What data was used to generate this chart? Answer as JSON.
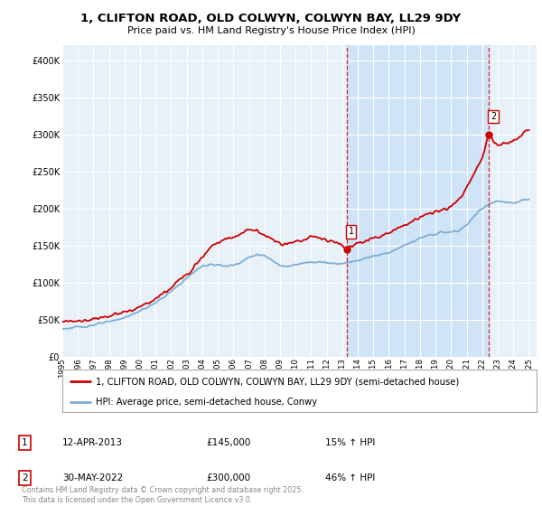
{
  "title_line1": "1, CLIFTON ROAD, OLD COLWYN, COLWYN BAY, LL29 9DY",
  "title_line2": "Price paid vs. HM Land Registry's House Price Index (HPI)",
  "legend_line1": "1, CLIFTON ROAD, OLD COLWYN, COLWYN BAY, LL29 9DY (semi-detached house)",
  "legend_line2": "HPI: Average price, semi-detached house, Conwy",
  "footnote": "Contains HM Land Registry data © Crown copyright and database right 2025.\nThis data is licensed under the Open Government Licence v3.0.",
  "annotation1_label": "1",
  "annotation1_date": "12-APR-2013",
  "annotation1_price": "£145,000",
  "annotation1_hpi": "15% ↑ HPI",
  "annotation2_label": "2",
  "annotation2_date": "30-MAY-2022",
  "annotation2_price": "£300,000",
  "annotation2_hpi": "46% ↑ HPI",
  "red_color": "#cc0000",
  "blue_color": "#7eadd4",
  "background_color": "#ffffff",
  "plot_bg_color": "#e8f0f8",
  "highlight_bg_color": "#d0e4f7",
  "grid_color": "#ffffff",
  "vline_color": "#cc0000",
  "ylim": [
    0,
    420000
  ],
  "yticks": [
    0,
    50000,
    100000,
    150000,
    200000,
    250000,
    300000,
    350000,
    400000
  ],
  "sale1_year": 2013.28,
  "sale1_price": 145000,
  "sale2_year": 2022.41,
  "sale2_price": 300000,
  "xmin": 1995,
  "xmax": 2025.5,
  "hpi_years": [
    1995.0,
    1995.5,
    1996.0,
    1996.5,
    1997.0,
    1997.5,
    1998.0,
    1998.5,
    1999.0,
    1999.5,
    2000.0,
    2000.5,
    2001.0,
    2001.5,
    2002.0,
    2002.5,
    2003.0,
    2003.5,
    2004.0,
    2004.5,
    2005.0,
    2005.5,
    2006.0,
    2006.5,
    2007.0,
    2007.5,
    2008.0,
    2008.5,
    2009.0,
    2009.5,
    2010.0,
    2010.5,
    2011.0,
    2011.5,
    2012.0,
    2012.5,
    2013.0,
    2013.5,
    2014.0,
    2014.5,
    2015.0,
    2015.5,
    2016.0,
    2016.5,
    2017.0,
    2017.5,
    2018.0,
    2018.5,
    2019.0,
    2019.5,
    2020.0,
    2020.5,
    2021.0,
    2021.5,
    2022.0,
    2022.5,
    2023.0,
    2023.5,
    2024.0,
    2024.5,
    2025.0
  ],
  "hpi_values": [
    38000,
    38500,
    40000,
    41000,
    43000,
    45000,
    47000,
    50000,
    53000,
    57000,
    62000,
    67000,
    73000,
    80000,
    88000,
    97000,
    106000,
    115000,
    122000,
    125000,
    124000,
    122000,
    124000,
    128000,
    134000,
    138000,
    136000,
    130000,
    124000,
    122000,
    124000,
    126000,
    128000,
    128000,
    127000,
    126000,
    126000,
    128000,
    130000,
    133000,
    136000,
    138000,
    141000,
    145000,
    150000,
    155000,
    160000,
    163000,
    166000,
    168000,
    168000,
    170000,
    178000,
    190000,
    200000,
    207000,
    210000,
    208000,
    207000,
    210000,
    213000
  ],
  "red_years": [
    1995.0,
    1995.5,
    1996.0,
    1996.5,
    1997.0,
    1997.5,
    1998.0,
    1998.5,
    1999.0,
    1999.5,
    2000.0,
    2000.5,
    2001.0,
    2001.5,
    2002.0,
    2002.5,
    2003.0,
    2003.5,
    2004.0,
    2004.5,
    2005.0,
    2005.5,
    2006.0,
    2006.5,
    2007.0,
    2007.5,
    2008.0,
    2008.5,
    2009.0,
    2009.5,
    2010.0,
    2010.5,
    2011.0,
    2011.5,
    2012.0,
    2012.5,
    2013.0,
    2013.28,
    2013.5,
    2014.0,
    2014.5,
    2015.0,
    2015.5,
    2016.0,
    2016.5,
    2017.0,
    2017.5,
    2018.0,
    2018.5,
    2019.0,
    2019.5,
    2020.0,
    2020.5,
    2021.0,
    2021.5,
    2022.0,
    2022.41,
    2022.5,
    2023.0,
    2023.5,
    2024.0,
    2024.5,
    2025.0
  ],
  "red_values": [
    47000,
    47500,
    48000,
    49500,
    51000,
    53000,
    55000,
    57000,
    60000,
    63000,
    67000,
    72000,
    78000,
    85000,
    93000,
    103000,
    112000,
    123000,
    135000,
    148000,
    155000,
    158000,
    162000,
    166000,
    172000,
    170000,
    165000,
    158000,
    153000,
    152000,
    155000,
    158000,
    162000,
    161000,
    158000,
    155000,
    152000,
    145000,
    148000,
    153000,
    157000,
    161000,
    163000,
    167000,
    172000,
    178000,
    183000,
    188000,
    192000,
    196000,
    198000,
    202000,
    212000,
    228000,
    248000,
    268000,
    300000,
    295000,
    285000,
    288000,
    292000,
    298000,
    308000
  ]
}
